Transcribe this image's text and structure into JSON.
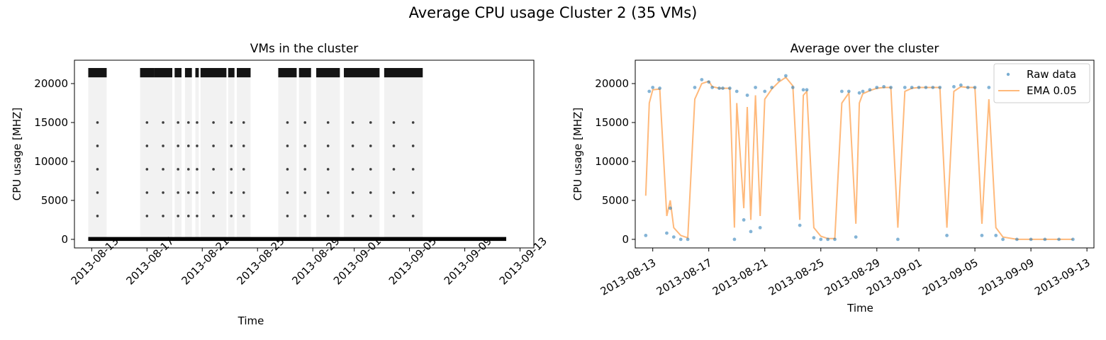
{
  "figure": {
    "suptitle": "Average CPU usage Cluster 2 (35 VMs)"
  },
  "chart_data": [
    {
      "type": "scatter",
      "title": "VMs in the cluster",
      "xlabel": "Time",
      "ylabel": "CPU usage [MHZ]",
      "x_axis": "date",
      "xlim": [
        "2013-08-11T18:00",
        "2013-09-14T00:00"
      ],
      "ylim": [
        -1100,
        23000
      ],
      "xticks": [
        "2013-08-13",
        "2013-08-17",
        "2013-08-21",
        "2013-08-25",
        "2013-08-29",
        "2013-09-01",
        "2013-09-05",
        "2013-09-09",
        "2013-09-13"
      ],
      "yticks": [
        0,
        5000,
        10000,
        15000,
        20000
      ],
      "grid": false,
      "marker_color": "#000000",
      "series": [
        {
          "description_values": "Per-VM CPU usage over time (35 VMs); dense saturated band near 21500 MHz during busy periods, idle level near 0 MHz",
          "busy_segments": [
            [
              "2013-08-12T18:00",
              "2013-08-14T02:00"
            ],
            [
              "2013-08-16T12:00",
              "2013-08-17T12:00"
            ],
            [
              "2013-08-17T12:00",
              "2013-08-18T20:00"
            ],
            [
              "2013-08-19T00:00",
              "2013-08-19T12:00"
            ],
            [
              "2013-08-19T18:00",
              "2013-08-20T06:00"
            ],
            [
              "2013-08-20T12:00",
              "2013-08-20T18:00"
            ],
            [
              "2013-08-20T21:00",
              "2013-08-22T18:00"
            ],
            [
              "2013-08-22T21:00",
              "2013-08-23T08:00"
            ],
            [
              "2013-08-23T12:00",
              "2013-08-24T12:00"
            ],
            [
              "2013-08-26T12:00",
              "2013-08-27T20:00"
            ],
            [
              "2013-08-28T00:00",
              "2013-08-28T21:00"
            ],
            [
              "2013-08-29T06:00",
              "2013-08-30T23:00"
            ],
            [
              "2013-08-31T06:00",
              "2013-09-02T20:00"
            ],
            [
              "2013-09-03T04:00",
              "2013-09-05T23:00"
            ]
          ],
          "busy_level": 21500,
          "idle_level": 50
        }
      ]
    },
    {
      "type": "line",
      "title": "Average over the cluster",
      "xlabel": "Time",
      "ylabel": "CPU usage [MHZ]",
      "x_axis": "date",
      "xlim": [
        "2013-08-11T18:00",
        "2013-09-13T12:00"
      ],
      "ylim": [
        -1100,
        23000
      ],
      "xticks": [
        "2013-08-13",
        "2013-08-17",
        "2013-08-21",
        "2013-08-25",
        "2013-08-29",
        "2013-09-01",
        "2013-09-05",
        "2013-09-09",
        "2013-09-13"
      ],
      "yticks": [
        0,
        5000,
        10000,
        15000,
        20000
      ],
      "grid": false,
      "legend_position": "top-right",
      "series": [
        {
          "name": "Raw data",
          "style": "points",
          "color": "#1f77b4",
          "x": [
            "2013-08-12T12:00",
            "2013-08-12T18:00",
            "2013-08-13T00:00",
            "2013-08-13T12:00",
            "2013-08-14T00:00",
            "2013-08-14T06:00",
            "2013-08-14T12:00",
            "2013-08-15T00:00",
            "2013-08-15T12:00",
            "2013-08-16T00:00",
            "2013-08-16T12:00",
            "2013-08-17T00:00",
            "2013-08-17T06:00",
            "2013-08-17T18:00",
            "2013-08-18T00:00",
            "2013-08-18T12:00",
            "2013-08-18T20:00",
            "2013-08-19T00:00",
            "2013-08-19T12:00",
            "2013-08-19T18:00",
            "2013-08-20T00:00",
            "2013-08-20T08:00",
            "2013-08-20T16:00",
            "2013-08-21T00:00",
            "2013-08-21T12:00",
            "2013-08-22T00:00",
            "2013-08-22T12:00",
            "2013-08-23T00:00",
            "2013-08-23T12:00",
            "2013-08-23T18:00",
            "2013-08-24T00:00",
            "2013-08-24T12:00",
            "2013-08-25T00:00",
            "2013-08-25T12:00",
            "2013-08-26T00:00",
            "2013-08-26T12:00",
            "2013-08-27T00:00",
            "2013-08-27T12:00",
            "2013-08-27T18:00",
            "2013-08-28T00:00",
            "2013-08-28T12:00",
            "2013-08-29T00:00",
            "2013-08-29T12:00",
            "2013-08-30T00:00",
            "2013-08-30T12:00",
            "2013-08-31T00:00",
            "2013-08-31T12:00",
            "2013-09-01T00:00",
            "2013-09-01T12:00",
            "2013-09-02T00:00",
            "2013-09-02T12:00",
            "2013-09-03T00:00",
            "2013-09-03T12:00",
            "2013-09-04T00:00",
            "2013-09-04T12:00",
            "2013-09-05T00:00",
            "2013-09-05T12:00",
            "2013-09-06T00:00",
            "2013-09-06T12:00",
            "2013-09-07T00:00",
            "2013-09-08T00:00",
            "2013-09-09T00:00",
            "2013-09-10T00:00",
            "2013-09-11T00:00",
            "2013-09-12T00:00"
          ],
          "values": [
            500,
            19000,
            19500,
            19400,
            800,
            4000,
            300,
            0,
            0,
            19500,
            20500,
            20200,
            19500,
            19400,
            19400,
            19400,
            0,
            19000,
            2500,
            18500,
            1000,
            19500,
            1500,
            19000,
            19500,
            20500,
            21000,
            19500,
            1800,
            19200,
            19200,
            200,
            0,
            0,
            0,
            19000,
            19000,
            300,
            18800,
            19000,
            19200,
            19500,
            19600,
            19500,
            0,
            19500,
            19500,
            19500,
            19500,
            19500,
            19500,
            500,
            19600,
            19800,
            19500,
            19500,
            500,
            19500,
            500,
            0,
            0,
            0,
            0,
            0,
            0
          ]
        },
        {
          "name": "EMA 0.05",
          "style": "line",
          "color": "#ff7f0e",
          "x": [
            "2013-08-12T12:00",
            "2013-08-12T18:00",
            "2013-08-13T00:00",
            "2013-08-13T12:00",
            "2013-08-14T00:00",
            "2013-08-14T06:00",
            "2013-08-14T12:00",
            "2013-08-15T00:00",
            "2013-08-15T12:00",
            "2013-08-16T00:00",
            "2013-08-16T12:00",
            "2013-08-17T00:00",
            "2013-08-17T06:00",
            "2013-08-17T18:00",
            "2013-08-18T00:00",
            "2013-08-18T12:00",
            "2013-08-18T20:00",
            "2013-08-19T00:00",
            "2013-08-19T12:00",
            "2013-08-19T18:00",
            "2013-08-20T00:00",
            "2013-08-20T08:00",
            "2013-08-20T16:00",
            "2013-08-21T00:00",
            "2013-08-21T12:00",
            "2013-08-22T00:00",
            "2013-08-22T12:00",
            "2013-08-23T00:00",
            "2013-08-23T12:00",
            "2013-08-23T18:00",
            "2013-08-24T00:00",
            "2013-08-24T12:00",
            "2013-08-25T00:00",
            "2013-08-25T12:00",
            "2013-08-26T00:00",
            "2013-08-26T12:00",
            "2013-08-27T00:00",
            "2013-08-27T12:00",
            "2013-08-27T18:00",
            "2013-08-28T00:00",
            "2013-08-28T12:00",
            "2013-08-29T00:00",
            "2013-08-29T12:00",
            "2013-08-30T00:00",
            "2013-08-30T12:00",
            "2013-08-31T00:00",
            "2013-08-31T12:00",
            "2013-09-01T00:00",
            "2013-09-01T12:00",
            "2013-09-02T00:00",
            "2013-09-02T12:00",
            "2013-09-03T00:00",
            "2013-09-03T12:00",
            "2013-09-04T00:00",
            "2013-09-04T12:00",
            "2013-09-05T00:00",
            "2013-09-05T12:00",
            "2013-09-06T00:00",
            "2013-09-06T12:00",
            "2013-09-07T00:00",
            "2013-09-08T00:00",
            "2013-09-09T00:00",
            "2013-09-10T00:00",
            "2013-09-11T00:00",
            "2013-09-12T00:00"
          ],
          "values": [
            5600,
            17500,
            19200,
            19300,
            3000,
            5000,
            1500,
            500,
            200,
            18000,
            20000,
            20300,
            19600,
            19400,
            19400,
            19400,
            1500,
            17500,
            4000,
            17000,
            2500,
            18500,
            3000,
            18000,
            19300,
            20200,
            20800,
            19700,
            2500,
            18500,
            19000,
            1500,
            400,
            100,
            100,
            17500,
            18800,
            2000,
            17500,
            18700,
            19100,
            19400,
            19500,
            19500,
            1500,
            19000,
            19400,
            19500,
            19500,
            19500,
            19500,
            1500,
            19000,
            19600,
            19500,
            19500,
            2000,
            18000,
            1500,
            300,
            0,
            0,
            0,
            0,
            0
          ]
        }
      ]
    }
  ]
}
